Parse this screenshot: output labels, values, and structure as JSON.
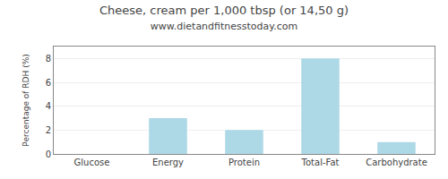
{
  "chart_data": {
    "type": "bar",
    "title": "Cheese, cream per 1,000 tbsp (or 14,50 g)",
    "subtitle": "www.dietandfitnesstoday.com",
    "categories": [
      "Glucose",
      "Energy",
      "Protein",
      "Total-Fat",
      "Carbohydrate"
    ],
    "values": [
      0,
      3,
      2,
      8,
      1
    ],
    "color": "#add8e6",
    "ylabel": "Percentage of RDH (%)",
    "ylim": [
      0,
      9
    ],
    "yticks": [
      0,
      2,
      4,
      6,
      8
    ],
    "grid": true
  }
}
